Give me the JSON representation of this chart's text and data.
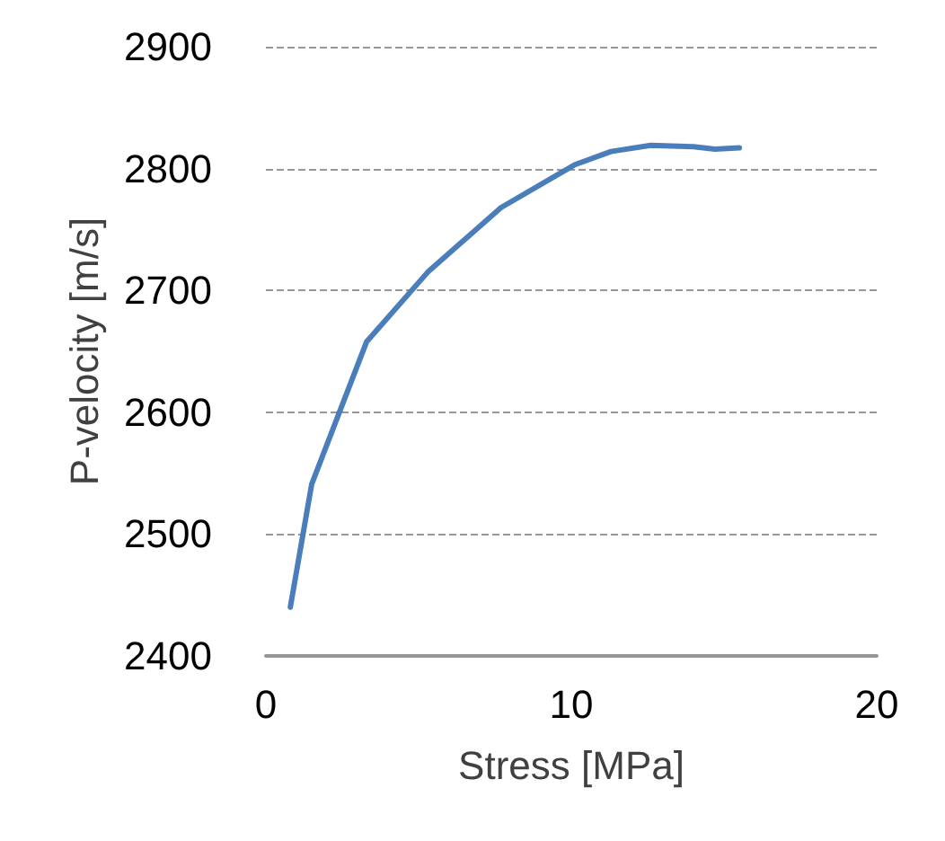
{
  "chart_data": {
    "type": "line",
    "xlabel": "Stress [MPa]",
    "ylabel": "P-velocity [m/s]",
    "xlim": [
      0,
      20
    ],
    "xticks": [
      0,
      10,
      20
    ],
    "ylim": [
      2400,
      2900
    ],
    "yticks": [
      2400,
      2500,
      2600,
      2700,
      2800,
      2900
    ],
    "grid": "y",
    "marker": "none",
    "line_style": "solid",
    "series": [
      {
        "color": "#4a7ebb",
        "x": [
          0.8,
          1.5,
          3.3,
          5.3,
          7.7,
          10.1,
          11.3,
          12.6,
          14.0,
          14.7,
          15.5
        ],
        "values": [
          2440,
          2541,
          2658,
          2715,
          2768,
          2803,
          2814,
          2819,
          2818,
          2816,
          2817
        ]
      }
    ]
  }
}
